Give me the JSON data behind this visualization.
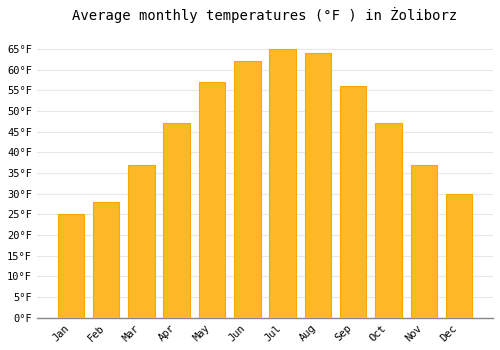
{
  "title": "Average monthly temperatures (°F ) in Żoliborz",
  "months": [
    "Jan",
    "Feb",
    "Mar",
    "Apr",
    "May",
    "Jun",
    "Jul",
    "Aug",
    "Sep",
    "Oct",
    "Nov",
    "Dec"
  ],
  "values": [
    25,
    28,
    37,
    47,
    57,
    62,
    65,
    64,
    56,
    47,
    37,
    30
  ],
  "bar_color": "#FDB827",
  "bar_edge_color": "#FCA800",
  "ylim": [
    0,
    70
  ],
  "yticks": [
    0,
    5,
    10,
    15,
    20,
    25,
    30,
    35,
    40,
    45,
    50,
    55,
    60,
    65
  ],
  "ytick_labels": [
    "0°F",
    "5°F",
    "10°F",
    "15°F",
    "20°F",
    "25°F",
    "30°F",
    "35°F",
    "40°F",
    "45°F",
    "50°F",
    "55°F",
    "60°F",
    "65°F"
  ],
  "background_color": "#ffffff",
  "grid_color": "#e8e8e8",
  "title_fontsize": 10,
  "tick_fontsize": 7.5,
  "bar_width": 0.75
}
